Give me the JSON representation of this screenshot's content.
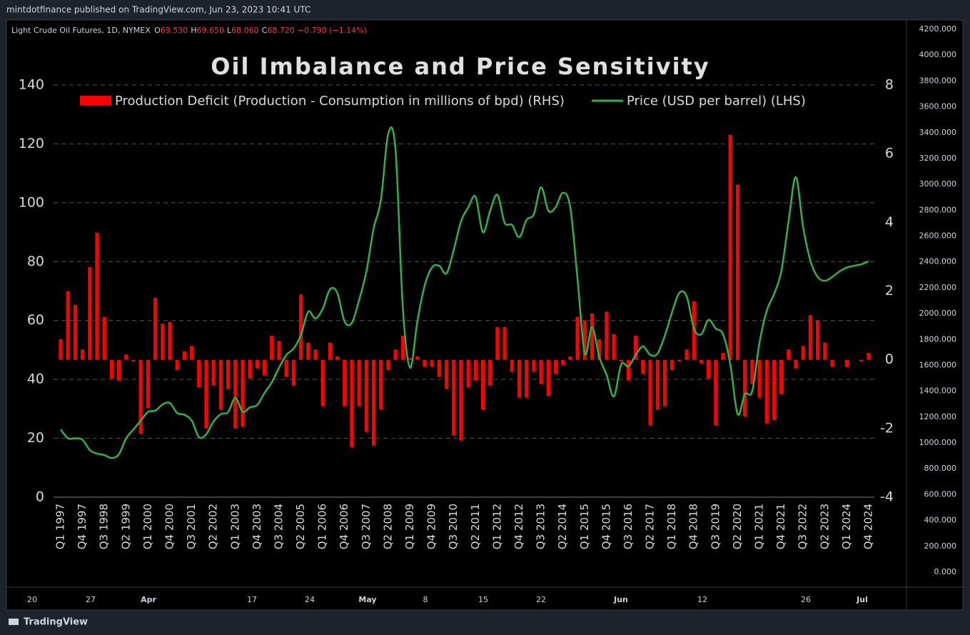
{
  "header": {
    "text": "mintdotfinance published on TradingView.com, Jun 23, 2023 10:41 UTC"
  },
  "symbol": {
    "name": "Light Crude Oil Futures, 1D, NYMEX",
    "ohlc": [
      {
        "label": "O",
        "value": "69.530"
      },
      {
        "label": "H",
        "value": "69.650"
      },
      {
        "label": "L",
        "value": "68.060"
      },
      {
        "label": "C",
        "value": "68.720"
      }
    ],
    "change": "−0.790 (−1.14%)"
  },
  "price_axis": {
    "lim": [
      0,
      4200
    ],
    "ticks": [
      {
        "value": 0,
        "label": "0.000"
      },
      {
        "value": 200,
        "label": "200.000"
      },
      {
        "value": 400,
        "label": "400.000"
      },
      {
        "value": 600,
        "label": "600.000"
      },
      {
        "value": 800,
        "label": "800.000"
      },
      {
        "value": 1000,
        "label": "1000.000"
      },
      {
        "value": 1200,
        "label": "1200.000"
      },
      {
        "value": 1400,
        "label": "1400.000"
      },
      {
        "value": 1600,
        "label": "1600.000"
      },
      {
        "value": 1800,
        "label": "1800.000"
      },
      {
        "value": 2000,
        "label": "2000.000"
      },
      {
        "value": 2200,
        "label": "2200.000"
      },
      {
        "value": 2400,
        "label": "2400.000"
      },
      {
        "value": 2600,
        "label": "2600.000"
      },
      {
        "value": 2800,
        "label": "2800.000"
      },
      {
        "value": 3000,
        "label": "3000.000"
      },
      {
        "value": 3200,
        "label": "3200.000"
      },
      {
        "value": 3400,
        "label": "3400.000"
      },
      {
        "value": 3600,
        "label": "3600.000"
      },
      {
        "value": 3800,
        "label": "3800.000"
      },
      {
        "value": 4000,
        "label": "4000.000"
      },
      {
        "value": 4200,
        "label": "4200.000"
      }
    ]
  },
  "time_axis": {
    "labels": [
      "20",
      "27",
      "Apr",
      "17",
      "24",
      "May",
      "8",
      "15",
      "22",
      "Jun",
      "12",
      "26",
      "Jul"
    ]
  },
  "footer": {
    "brand": "TradingView"
  },
  "chart_data": {
    "type": "combo",
    "title": "Oil Imbalance and Price Sensitivity",
    "legend": "top",
    "grid": true,
    "categories": [
      "Q1 1997",
      null,
      null,
      "Q4 1997",
      null,
      null,
      "Q3 1998",
      null,
      null,
      "Q2 1999",
      null,
      null,
      "Q1 2000",
      null,
      null,
      "Q4 2000",
      null,
      null,
      "Q3 2001",
      null,
      null,
      "Q2 2002",
      null,
      null,
      "Q1 2003",
      null,
      null,
      "Q4 2003",
      null,
      null,
      "Q3 2004",
      null,
      null,
      "Q2 2005",
      null,
      null,
      "Q1 2006",
      null,
      null,
      "Q4 2006",
      null,
      null,
      "Q3 2007",
      null,
      null,
      "Q2 2008",
      null,
      null,
      "Q1 2009",
      null,
      null,
      "Q4 2009",
      null,
      null,
      "Q3 2010",
      null,
      null,
      "Q2 2011",
      null,
      null,
      "Q1 2012",
      null,
      null,
      "Q4 2012",
      null,
      null,
      "Q3 2013",
      null,
      null,
      "Q2 2014",
      null,
      null,
      "Q1 2015",
      null,
      null,
      "Q4 2015",
      null,
      null,
      "Q3 2016",
      null,
      null,
      "Q2 2017",
      null,
      null,
      "Q1 2018",
      null,
      null,
      "Q4 2018",
      null,
      null,
      "Q3 2019",
      null,
      null,
      "Q2 2020",
      null,
      null,
      "Q1 2021",
      null,
      null,
      "Q4 2021",
      null,
      null,
      "Q3 2022",
      null,
      null,
      "Q2 2023",
      null,
      null,
      "Q1 2024",
      null,
      null,
      "Q4 2024"
    ],
    "ylim": [
      0,
      140
    ],
    "yticks": [
      0,
      20,
      40,
      60,
      80,
      100,
      120,
      140
    ],
    "y2lim": [
      -4,
      8
    ],
    "y2ticks": [
      -4,
      -2,
      0,
      2,
      4,
      6,
      8
    ],
    "series": [
      {
        "name": "Production Deficit (Production - Consumption in millions of bpd) (RHS)",
        "type": "bar",
        "axis": "y2",
        "color": "#ff0000",
        "values": [
          0.6,
          2.0,
          1.6,
          0.3,
          2.7,
          3.7,
          1.25,
          -0.55,
          -0.6,
          0.15,
          -0.05,
          -2.15,
          -1.4,
          1.8,
          1.05,
          1.1,
          -0.3,
          0.25,
          0.4,
          -0.8,
          -2.0,
          -0.75,
          -1.45,
          -0.85,
          -2.0,
          -1.95,
          -0.55,
          -0.25,
          -0.45,
          0.7,
          0.55,
          -0.5,
          -0.75,
          1.9,
          0.5,
          0.3,
          -1.35,
          0.5,
          0.1,
          -1.35,
          -2.55,
          -1.35,
          -2.1,
          -2.5,
          -1.45,
          -0.3,
          0.3,
          0.7,
          0.05,
          0.1,
          -0.2,
          -0.2,
          -0.5,
          -0.85,
          -2.2,
          -2.35,
          -0.8,
          -0.6,
          -1.45,
          -0.75,
          0.95,
          0.95,
          -0.35,
          -1.1,
          -1.1,
          -0.35,
          -0.7,
          -1.05,
          -0.4,
          -0.15,
          0.1,
          1.25,
          1.15,
          1.35,
          0.6,
          1.4,
          0.75,
          -0.05,
          -0.6,
          0.7,
          -0.4,
          -1.9,
          -1.45,
          -1.35,
          -0.3,
          -0.05,
          0.3,
          1.7,
          -0.1,
          -0.55,
          -1.9,
          0.2,
          6.55,
          5.1,
          -1.65,
          -0.7,
          -1.1,
          -1.85,
          -1.75,
          -1.0,
          0.3,
          -0.25,
          0.4,
          1.3,
          1.15,
          0.5,
          -0.2,
          0,
          -0.2,
          0,
          -0.05,
          0.2
        ]
      },
      {
        "name": "Price (USD per barrel) (LHS)",
        "type": "line",
        "axis": "y",
        "color": "#2db34a",
        "values": [
          23,
          20,
          20,
          19.5,
          16,
          14.8,
          14.3,
          13.3,
          14.6,
          20,
          23,
          26,
          29,
          29.4,
          31.5,
          32,
          28.6,
          28,
          26,
          20.4,
          21.4,
          25.7,
          28.2,
          28.9,
          33.7,
          29,
          30.5,
          31.3,
          35.4,
          39,
          44,
          48.3,
          50.5,
          55,
          63,
          60.7,
          64,
          70.6,
          69.4,
          59.7,
          59.2,
          67,
          76.7,
          91.3,
          101,
          123.5,
          118,
          64.6,
          44,
          59.7,
          71.8,
          78,
          78.6,
          76,
          84,
          93.7,
          98.5,
          102,
          90,
          97.3,
          102.7,
          93.2,
          92.5,
          88.3,
          94.2,
          96.1,
          105.3,
          97.3,
          98.5,
          103.4,
          98.5,
          74.3,
          48.8,
          57.8,
          47.6,
          41.5,
          34.2,
          45.1,
          44.4,
          48.3,
          51.2,
          48.3,
          48.8,
          54.9,
          62.9,
          69.4,
          68.2,
          57.3,
          55.3,
          60.2,
          57.3,
          55.3,
          45.1,
          28.2,
          35,
          36,
          52.4,
          63.3,
          69,
          76.7,
          93.7,
          108.7,
          91.7,
          80.3,
          74.8,
          73.5,
          74.8,
          76.7,
          78,
          78.6,
          79.1,
          80.1
        ]
      }
    ]
  }
}
